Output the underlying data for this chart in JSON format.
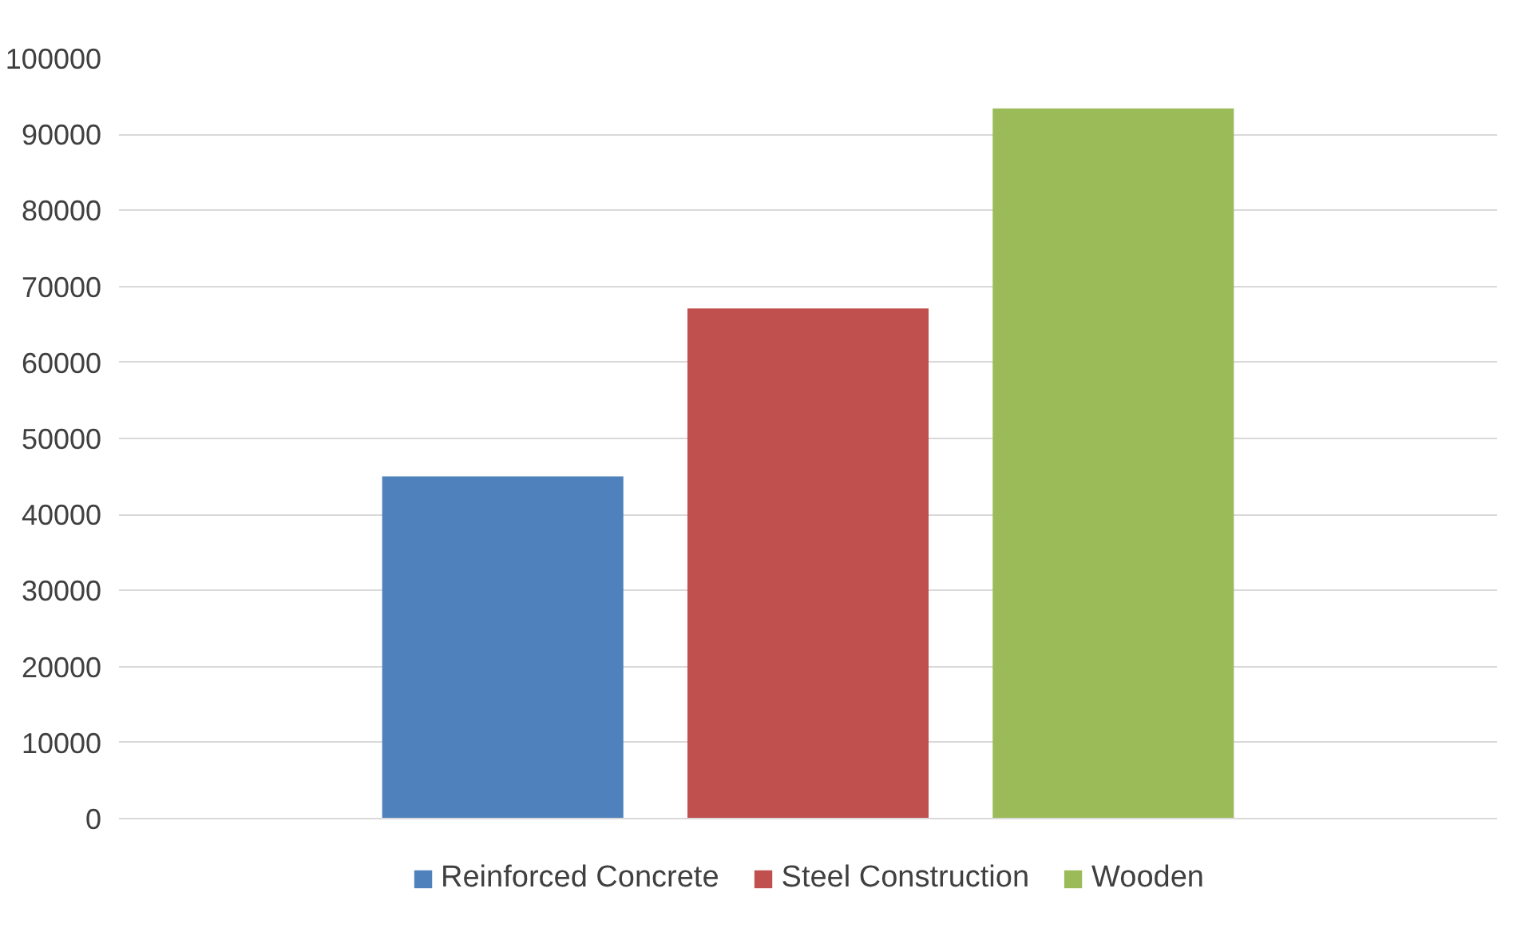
{
  "chart_data": {
    "type": "bar",
    "categories": [
      null
    ],
    "series": [
      {
        "name": "Reinforced Concrete",
        "color": "#4f81bd",
        "values": [
          45000
        ]
      },
      {
        "name": "Steel Construction",
        "color": "#c0504d",
        "values": [
          67100
        ]
      },
      {
        "name": "Wooden",
        "color": "#9bbb59",
        "values": [
          93400
        ]
      }
    ],
    "ylim": [
      0,
      100000
    ],
    "yticks": [
      0,
      10000,
      20000,
      30000,
      40000,
      50000,
      60000,
      70000,
      80000,
      90000,
      100000
    ],
    "grid": "y",
    "legend": "bottom"
  }
}
